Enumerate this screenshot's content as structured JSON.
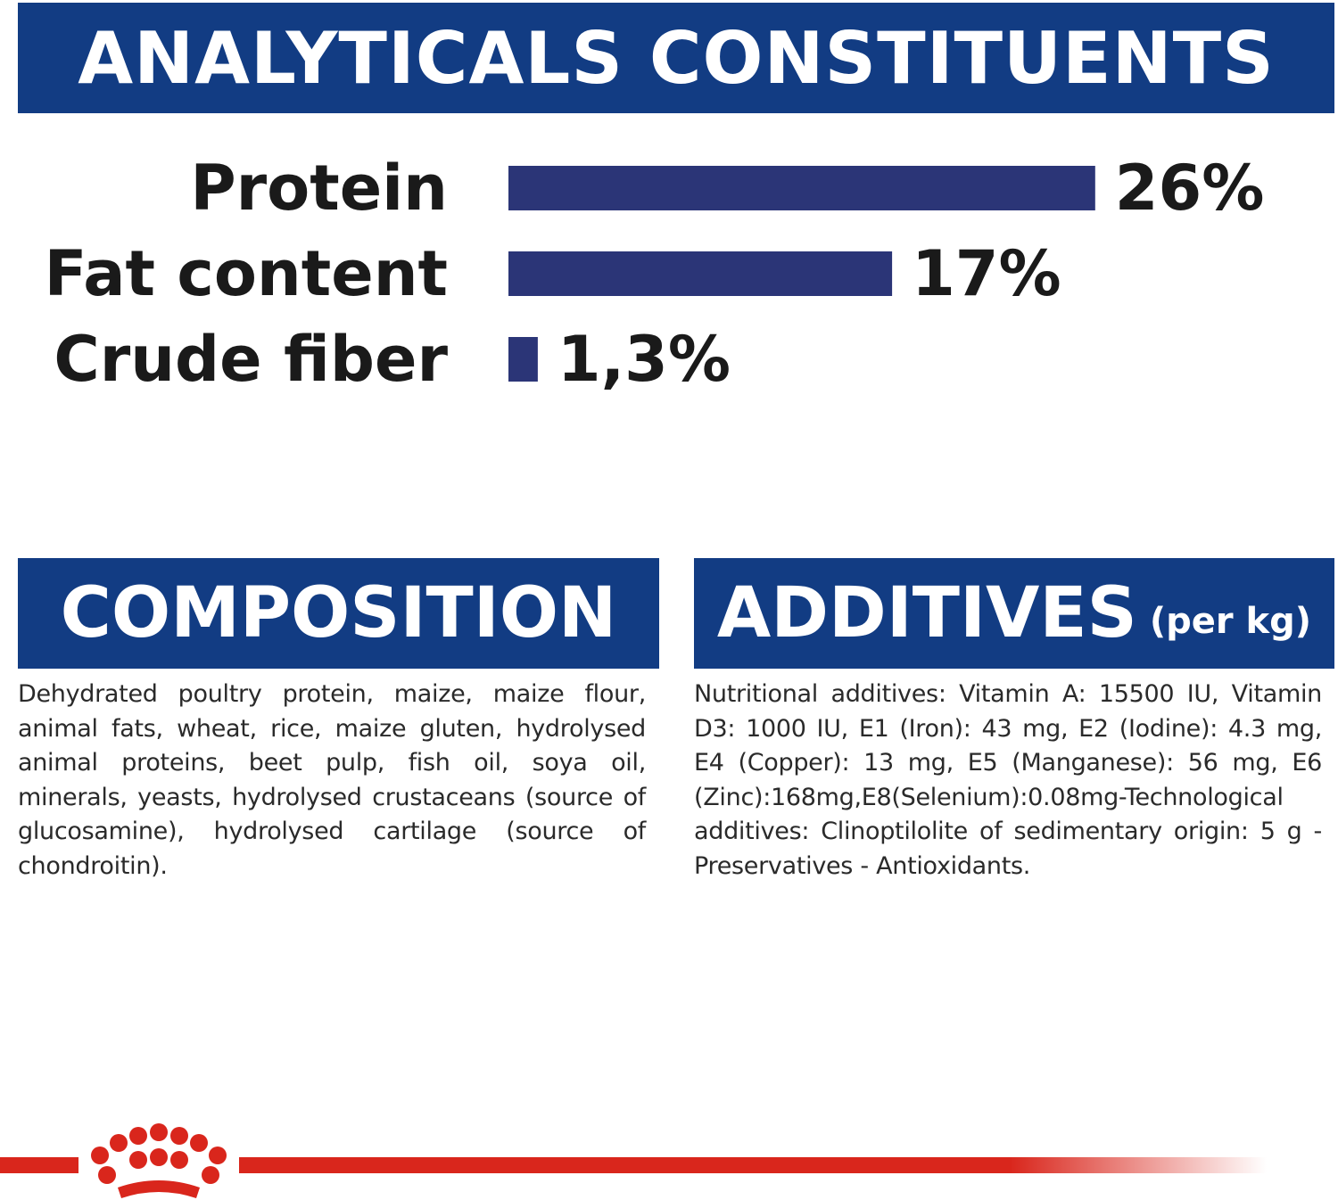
{
  "header": {
    "title": "ANALYTICALS CONSTITUENTS"
  },
  "chart_data": {
    "type": "bar",
    "orientation": "horizontal",
    "categories": [
      "Protein",
      "Fat content",
      "Crude fiber"
    ],
    "values": [
      26,
      17,
      1.3
    ],
    "value_labels": [
      "26%",
      "17%",
      "1,3%"
    ],
    "color": "#2b3577"
  },
  "composition": {
    "title": "COMPOSITION",
    "text": "Dehydrated poultry protein, maize, maize flour, animal fats, wheat, rice, maize gluten, hydrolysed animal proteins, beet pulp, fish oil, soya oil, minerals, yeasts, hydrolysed crustaceans (source of glucosamine), hydrolysed cartilage (source of chondroitin)."
  },
  "additives": {
    "title": "ADDITIVES",
    "subtitle": "(per kg)",
    "text": "Nutritional additives: Vitamin A: 15500 IU, Vitamin D3: 1000 IU, E1 (Iron): 43 mg, E2 (Iodine): 4.3 mg, E4 (Copper): 13 mg, E5 (Manganese): 56 mg, E6 (Zinc):168mg,E8(Selenium):0.08mg-Technological additives: Clinoptilolite of sedimentary origin: 5 g - Preservatives - Antioxidants."
  }
}
